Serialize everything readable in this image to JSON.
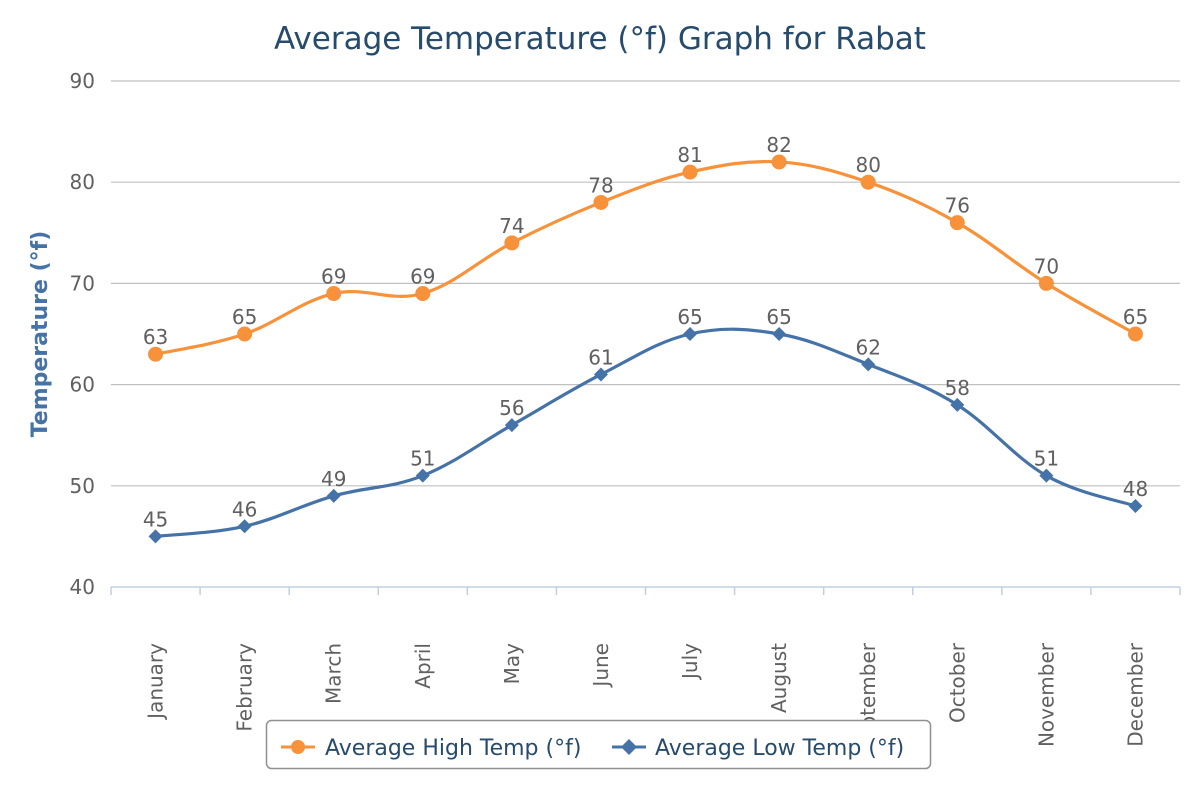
{
  "chart_data": {
    "type": "line",
    "title": "Average Temperature (°f) Graph for Rabat",
    "xlabel": "",
    "ylabel": "Temperature (°f)",
    "ylim": [
      40,
      90
    ],
    "yticks": [
      40,
      50,
      60,
      70,
      80,
      90
    ],
    "grid": true,
    "legend_position": "bottom-center",
    "categories": [
      "January",
      "February",
      "March",
      "April",
      "May",
      "June",
      "July",
      "August",
      "September",
      "October",
      "November",
      "December"
    ],
    "series": [
      {
        "name": "Average High Temp (°f)",
        "color": "#f7923a",
        "marker": "circle",
        "values": [
          63,
          65,
          69,
          69,
          74,
          78,
          81,
          82,
          80,
          76,
          70,
          65
        ]
      },
      {
        "name": "Average Low Temp (°f)",
        "color": "#4572a7",
        "marker": "diamond",
        "values": [
          45,
          46,
          49,
          51,
          56,
          61,
          65,
          65,
          62,
          58,
          51,
          48
        ]
      }
    ]
  }
}
